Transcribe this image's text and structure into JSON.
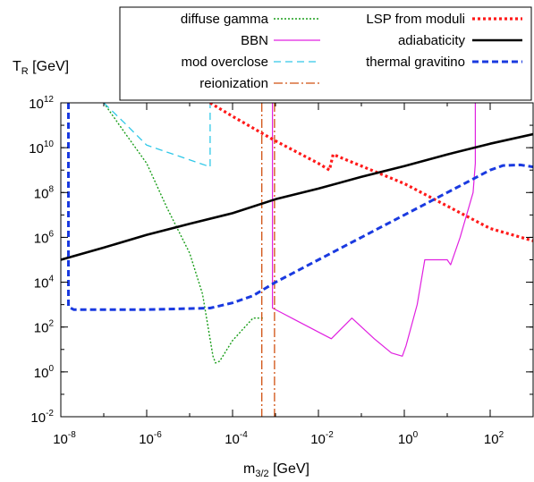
{
  "chart_data": {
    "type": "line",
    "title": "",
    "xlabel": {
      "main": "m",
      "sub": "3/2",
      "unit": " [GeV]"
    },
    "ylabel": {
      "main": "T",
      "sub": "R",
      "unit": " [GeV]"
    },
    "x_scale": "log",
    "y_scale": "log",
    "xlim": [
      1e-08,
      1000
    ],
    "ylim": [
      0.01,
      1000000000000.0
    ],
    "grid": false,
    "legend_position": "top (two columns)",
    "x_ticks": [
      {
        "value": 1e-08,
        "base": "10",
        "exp": "-8"
      },
      {
        "value": 1e-06,
        "base": "10",
        "exp": "-6"
      },
      {
        "value": 0.0001,
        "base": "10",
        "exp": "-4"
      },
      {
        "value": 0.01,
        "base": "10",
        "exp": "-2"
      },
      {
        "value": 1,
        "base": "10",
        "exp": "0"
      },
      {
        "value": 100,
        "base": "10",
        "exp": "2"
      }
    ],
    "y_ticks": [
      {
        "value": 0.01,
        "base": "10",
        "exp": "-2"
      },
      {
        "value": 1,
        "base": "10",
        "exp": "0"
      },
      {
        "value": 100,
        "base": "10",
        "exp": "2"
      },
      {
        "value": 10000,
        "base": "10",
        "exp": "4"
      },
      {
        "value": 1000000.0,
        "base": "10",
        "exp": "6"
      },
      {
        "value": 100000000.0,
        "base": "10",
        "exp": "8"
      },
      {
        "value": 10000000000.0,
        "base": "10",
        "exp": "10"
      },
      {
        "value": 1000000000000.0,
        "base": "10",
        "exp": "12"
      }
    ],
    "series": [
      {
        "name": "diffuse gamma",
        "color": "#1a9e1a",
        "dash": "dotted",
        "width": 1.4,
        "points": [
          [
            1e-07,
            1000000000000.0
          ],
          [
            3e-07,
            50000000000.0
          ],
          [
            1e-06,
            2000000000.0
          ],
          [
            3e-06,
            20000000.0
          ],
          [
            1e-05,
            200000.0
          ],
          [
            2e-05,
            3000
          ],
          [
            3.5e-05,
            5
          ],
          [
            4e-05,
            2.5
          ],
          [
            5e-05,
            3
          ],
          [
            0.0001,
            25
          ],
          [
            0.0003,
            250
          ],
          [
            0.00052,
            250
          ]
        ]
      },
      {
        "name": "BBN",
        "color": "#e020e0",
        "dash": "solid",
        "width": 1.2,
        "points": [
          [
            0.00085,
            1000000000000.0
          ],
          [
            0.00085,
            700
          ],
          [
            0.0015,
            400
          ],
          [
            0.003,
            200
          ],
          [
            0.01,
            60
          ],
          [
            0.02,
            30
          ],
          [
            0.06,
            250
          ],
          [
            0.2,
            30
          ],
          [
            0.5,
            7
          ],
          [
            0.9,
            5
          ],
          [
            1.1,
            15
          ],
          [
            2,
            1000
          ],
          [
            3,
            100000
          ],
          [
            10,
            100000
          ],
          [
            12,
            60000
          ],
          [
            20,
            1000000.0
          ],
          [
            40,
            100000000.0
          ],
          [
            45,
            2000000000.0
          ],
          [
            45,
            1000000000000.0
          ]
        ]
      },
      {
        "name": "mod overclose",
        "color": "#30c8e8",
        "dash": "dashed",
        "width": 1.3,
        "points": [
          [
            1e-07,
            1000000000000.0
          ],
          [
            3e-07,
            130000000000.0
          ],
          [
            1e-06,
            13000000000.0
          ],
          [
            3e-05,
            1400000000.0
          ],
          [
            3e-05,
            1000000000000.0
          ]
        ]
      },
      {
        "name": "reionization",
        "color": "#d05010",
        "dash": "dashdot",
        "width": 1.3,
        "points_multi": [
          [
            [
              0.00048,
              1000000000000.0
            ],
            [
              0.00048,
              0.01
            ]
          ],
          [
            [
              0.00095,
              1000000000000.0
            ],
            [
              0.00095,
              0.01
            ]
          ]
        ]
      },
      {
        "name": "LSP from moduli",
        "color": "#ff1a1a",
        "dash": "dotted-heavy",
        "width": 3.2,
        "points": [
          [
            3e-05,
            1000000000000.0
          ],
          [
            0.0001,
            250000000000.0
          ],
          [
            0.001,
            20000000000.0
          ],
          [
            0.01,
            2000000000.0
          ],
          [
            0.018,
            1000000000.0
          ],
          [
            0.022,
            5000000000.0
          ],
          [
            1,
            250000000.0
          ],
          [
            10,
            25000000.0
          ],
          [
            100,
            2500000.0
          ],
          [
            1000,
            700000.0
          ]
        ]
      },
      {
        "name": "adiabaticity",
        "color": "#000000",
        "dash": "solid",
        "width": 2.6,
        "points": [
          [
            1e-08,
            100000.0
          ],
          [
            1e-07,
            350000.0
          ],
          [
            1e-06,
            1300000.0
          ],
          [
            1e-05,
            4000000.0
          ],
          [
            0.0001,
            12000000.0
          ],
          [
            0.001,
            50000000.0
          ],
          [
            0.01,
            150000000.0
          ],
          [
            0.1,
            500000000.0
          ],
          [
            1,
            1500000000.0
          ],
          [
            10,
            5000000000.0
          ],
          [
            100,
            15000000000.0
          ],
          [
            1000,
            40000000000.0
          ]
        ]
      },
      {
        "name": "thermal gravitino",
        "color": "#1a3ae0",
        "dash": "dashed-heavy",
        "width": 3,
        "points": [
          [
            1.5e-08,
            1000000000000.0
          ],
          [
            1.5e-08,
            800
          ],
          [
            2e-08,
            600
          ],
          [
            1e-07,
            600
          ],
          [
            1e-06,
            600
          ],
          [
            3e-05,
            700
          ],
          [
            0.0001,
            1200
          ],
          [
            0.0003,
            2500
          ],
          [
            0.001,
            10000
          ],
          [
            0.01,
            100000
          ],
          [
            0.1,
            1000000.0
          ],
          [
            1,
            10000000.0
          ],
          [
            10,
            100000000.0
          ],
          [
            100,
            1000000000.0
          ],
          [
            200,
            1600000000.0
          ],
          [
            500,
            1700000000.0
          ],
          [
            1000,
            1400000000.0
          ]
        ]
      }
    ]
  }
}
